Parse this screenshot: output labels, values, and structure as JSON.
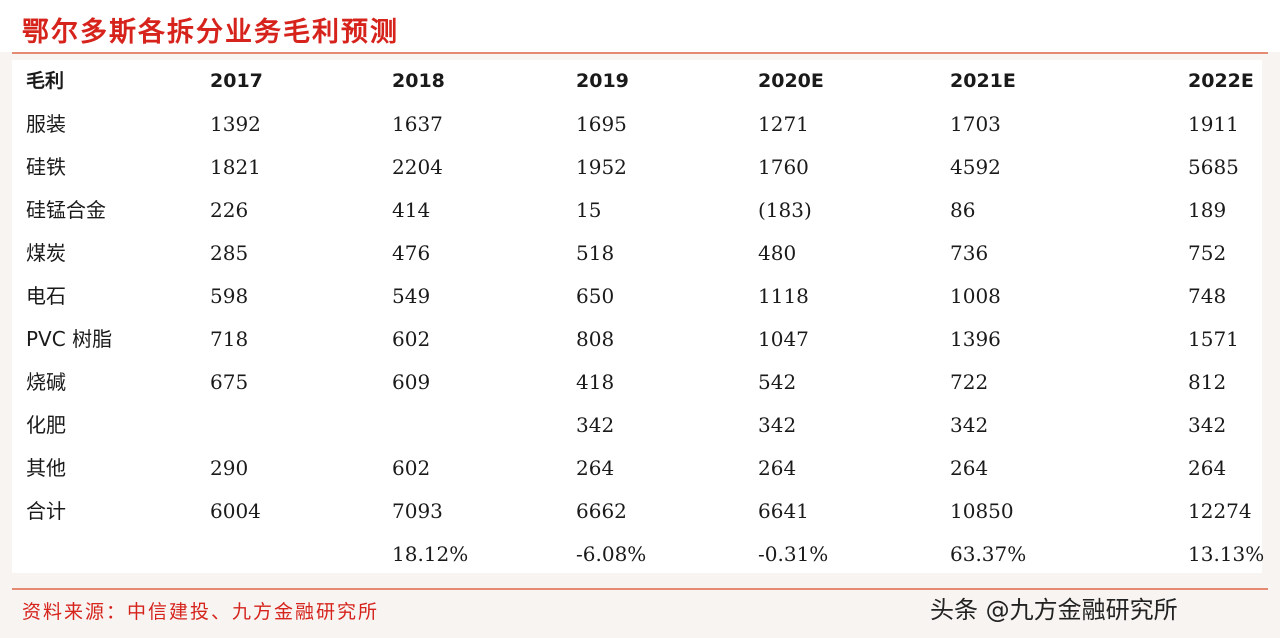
{
  "title": "鄂尔多斯各拆分业务毛利预测",
  "table": {
    "header": [
      "毛利",
      "2017",
      "2018",
      "2019",
      "2020E",
      "2021E",
      "2022E"
    ],
    "rows": [
      [
        "服装",
        "1392",
        "1637",
        "1695",
        "1271",
        "1703",
        "1911"
      ],
      [
        "硅铁",
        "1821",
        "2204",
        "1952",
        "1760",
        "4592",
        "5685"
      ],
      [
        "硅锰合金",
        "226",
        "414",
        "15",
        "(183)",
        "86",
        "189"
      ],
      [
        "煤炭",
        "285",
        "476",
        "518",
        "480",
        "736",
        "752"
      ],
      [
        "电石",
        "598",
        "549",
        "650",
        "1118",
        "1008",
        "748"
      ],
      [
        "PVC 树脂",
        "718",
        "602",
        "808",
        "1047",
        "1396",
        "1571"
      ],
      [
        "烧碱",
        "675",
        "609",
        "418",
        "542",
        "722",
        "812"
      ],
      [
        "化肥",
        "",
        "",
        "342",
        "342",
        "342",
        "342"
      ],
      [
        "其他",
        "290",
        "602",
        "264",
        "264",
        "264",
        "264"
      ],
      [
        "合计",
        "6004",
        "7093",
        "6662",
        "6641",
        "10850",
        "12274"
      ],
      [
        "",
        "",
        "18.12%",
        "-6.08%",
        "-0.31%",
        "63.37%",
        "13.13%"
      ]
    ]
  },
  "source": "资料来源：中信建投、九方金融研究所",
  "watermark": "头条 @九方金融研究所"
}
